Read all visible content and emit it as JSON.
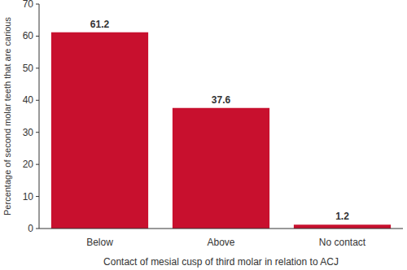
{
  "chart_data": {
    "type": "bar",
    "categories": [
      "Below",
      "Above",
      "No contact"
    ],
    "values": [
      61.2,
      37.6,
      1.2
    ],
    "color": "#c8102e",
    "ylim": [
      0,
      70
    ],
    "yticks": [
      0,
      10,
      20,
      30,
      40,
      50,
      60,
      70
    ],
    "x_label": "Contact of mesial cusp of third molar in relation to ACJ",
    "y_label": "Percentage of second molar teeth that are carious",
    "data_labels": true,
    "grid": false
  }
}
